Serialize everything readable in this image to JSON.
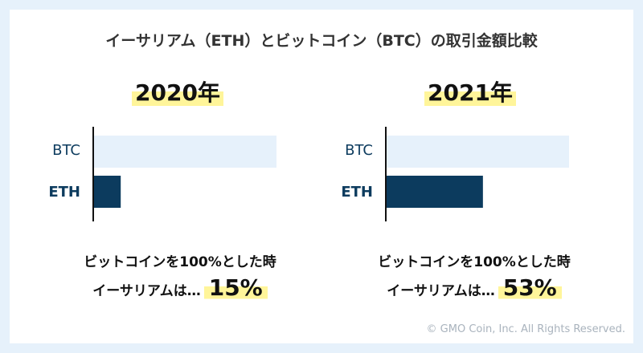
{
  "title": "イーサリアム（ETH）とビットコイン（BTC）の取引金額比較",
  "chart_data": [
    {
      "type": "bar",
      "orientation": "horizontal",
      "title": "2020年",
      "categories": [
        "BTC",
        "ETH"
      ],
      "values": [
        100,
        15
      ],
      "unit": "%",
      "colors": [
        "#e6f1fb",
        "#0c3b5e"
      ]
    },
    {
      "type": "bar",
      "orientation": "horizontal",
      "title": "2021年",
      "categories": [
        "BTC",
        "ETH"
      ],
      "values": [
        100,
        53
      ],
      "unit": "%",
      "colors": [
        "#e6f1fb",
        "#0c3b5e"
      ]
    }
  ],
  "captions": [
    {
      "line1": "ビットコインを100%とした時",
      "line2": "イーサリアムは…",
      "pct": "15%"
    },
    {
      "line1": "ビットコインを100%とした時",
      "line2": "イーサリアムは…",
      "pct": "53%"
    }
  ],
  "copyright": "© GMO Coin, Inc. All Rights Reserved."
}
